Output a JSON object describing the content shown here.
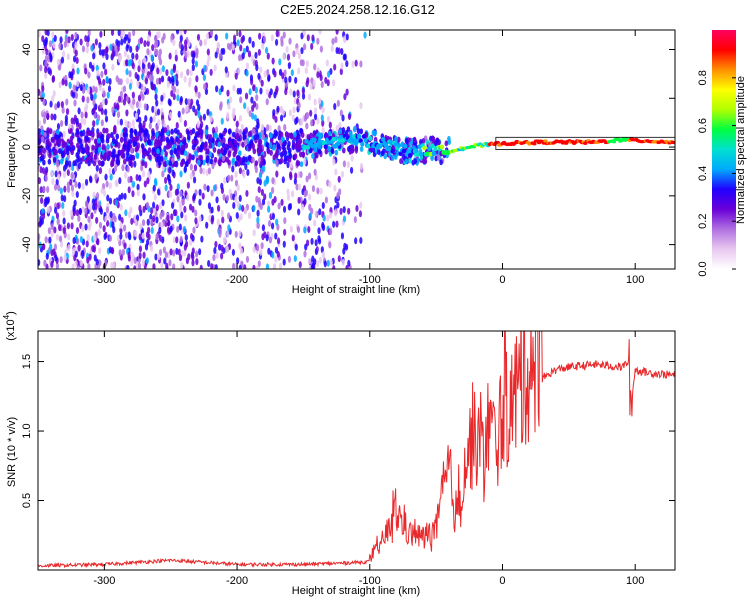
{
  "title": "C2E5.2024.258.12.16.G12",
  "chart_data": [
    {
      "type": "heatmap",
      "name": "spectrogram",
      "xlabel": "Height of straight line (km)",
      "ylabel": "Frequency (Hz)",
      "xlim": [
        -350,
        130
      ],
      "ylim": [
        -50,
        48
      ],
      "xticks": [
        -300,
        -200,
        -100,
        0,
        100
      ],
      "yticks": [
        -40,
        -20,
        0,
        20,
        40
      ],
      "colorbar": {
        "label": "Normalized spectral amplitude",
        "range": [
          0,
          1
        ],
        "ticks": [
          "0.0",
          "0.2",
          "0.4",
          "0.6",
          "0.8"
        ],
        "colors": [
          "#ffffff",
          "#e8c8f0",
          "#b070e0",
          "#6a00d8",
          "#2000ff",
          "#00aaff",
          "#00e0d0",
          "#00ff40",
          "#b0ff00",
          "#ffff00",
          "#ff9000",
          "#ff0000",
          "#ff0060"
        ]
      },
      "signal_trace": {
        "x": [
          -150,
          -130,
          -110,
          -90,
          -70,
          -55,
          -45,
          -35,
          -20,
          0,
          30,
          70,
          90,
          130
        ],
        "freq": [
          0.5,
          2,
          3,
          1.5,
          -2,
          -1,
          -2,
          -1,
          0.5,
          1.5,
          2,
          2,
          3,
          2
        ]
      }
    },
    {
      "type": "line",
      "name": "snr",
      "xlabel": "Height of straight line (km)",
      "ylabel": "SNR (10 * v/v)",
      "yscale_label": "(x10",
      "yscale_exp": "4",
      "xlim": [
        -350,
        130
      ],
      "ylim": [
        0,
        1.72
      ],
      "xticks": [
        -300,
        -200,
        -100,
        0,
        100
      ],
      "yticks": [
        "0.5",
        "1.0",
        "1.5"
      ],
      "ytick_values": [
        0.5,
        1.0,
        1.5
      ],
      "color": "#e8282a",
      "series": [
        {
          "name": "SNR",
          "x": [
            -350,
            -300,
            -250,
            -200,
            -150,
            -120,
            -100,
            -90,
            -80,
            -70,
            -60,
            -50,
            -45,
            -40,
            -35,
            -30,
            -25,
            -20,
            -15,
            -10,
            -5,
            0,
            5,
            10,
            20,
            30,
            40,
            50,
            60,
            70,
            80,
            90,
            95,
            97,
            100,
            110,
            120,
            130
          ],
          "y": [
            0.03,
            0.04,
            0.07,
            0.04,
            0.04,
            0.05,
            0.06,
            0.18,
            0.35,
            0.22,
            0.2,
            0.25,
            0.45,
            0.6,
            0.3,
            0.55,
            0.75,
            0.8,
            0.7,
            0.9,
            0.75,
            0.95,
            1.0,
            1.05,
            1.25,
            1.38,
            1.44,
            1.46,
            1.47,
            1.48,
            1.47,
            1.46,
            1.5,
            1.2,
            1.44,
            1.42,
            1.41,
            1.4
          ]
        }
      ]
    }
  ]
}
